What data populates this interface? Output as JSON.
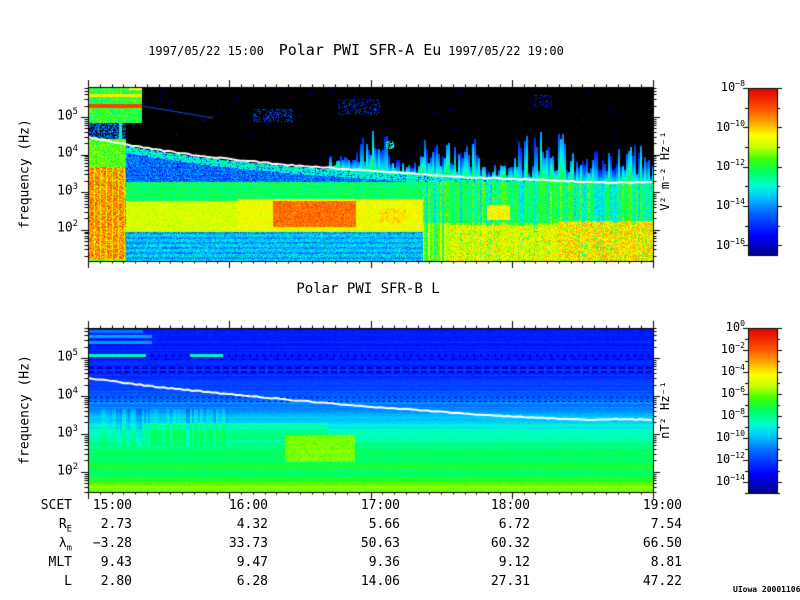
{
  "header": {
    "date_left": "1997/05/22 15:00",
    "title": "Polar PWI SFR-A Eu",
    "date_right": "1997/05/22 19:00"
  },
  "panel_b_title": "Polar PWI SFR-B L",
  "y_axis_label": "frequency (Hz)",
  "y_ticks_exp": [
    5,
    4,
    3,
    2
  ],
  "colorbars": [
    {
      "unit": "V² m⁻² Hz⁻¹",
      "labels_exp": [
        -8,
        -10,
        -12,
        -14,
        -16
      ],
      "range_exp": [
        -8,
        -16.5
      ]
    },
    {
      "unit": "nT² Hz⁻¹",
      "labels_exp": [
        0,
        -2,
        -4,
        -6,
        -8,
        -10,
        -12,
        -14
      ],
      "range_exp": [
        0,
        -15
      ]
    }
  ],
  "table": {
    "rows": [
      {
        "label": "SCET",
        "sub": "",
        "values": [
          "15:00",
          "16:00",
          "17:00",
          "18:00",
          "19:00"
        ]
      },
      {
        "label": "R",
        "sub": "E",
        "values": [
          "2.73",
          "4.32",
          "5.66",
          "6.72",
          "7.54"
        ]
      },
      {
        "label": "λ",
        "sub": "m",
        "values": [
          "−3.28",
          "33.73",
          "50.63",
          "60.32",
          "66.50"
        ]
      },
      {
        "label": "MLT",
        "sub": "",
        "values": [
          "9.43",
          "9.47",
          "9.36",
          "9.12",
          "8.81"
        ]
      },
      {
        "label": "L",
        "sub": "",
        "values": [
          "2.80",
          "6.28",
          "14.06",
          "27.31",
          "47.22"
        ]
      }
    ]
  },
  "credit": "UIowa 20001106",
  "colors": {
    "background": "#ffffff",
    "text": "#000000",
    "overlay_line": "#ffffff",
    "colormap_stops": [
      [
        0.0,
        "#00008a"
      ],
      [
        0.12,
        "#0000ff"
      ],
      [
        0.25,
        "#0064ff"
      ],
      [
        0.35,
        "#00c8ff"
      ],
      [
        0.42,
        "#00ffd0"
      ],
      [
        0.5,
        "#00ff60"
      ],
      [
        0.58,
        "#40ff00"
      ],
      [
        0.65,
        "#c8ff00"
      ],
      [
        0.72,
        "#ffff00"
      ],
      [
        0.8,
        "#ffa000"
      ],
      [
        0.88,
        "#ff5000"
      ],
      [
        1.0,
        "#e00000"
      ]
    ]
  },
  "chart_data": [
    {
      "type": "heatmap",
      "title": "Polar PWI SFR-A Eu",
      "xlabel": "SCET",
      "time_start": "1997/05/22 15:00",
      "time_end": "1997/05/22 19:00",
      "x_ticks": [
        "15:00",
        "16:00",
        "17:00",
        "18:00",
        "19:00"
      ],
      "ylabel": "frequency (Hz)",
      "yscale": "log",
      "y_ticks_hz": [
        100,
        1000,
        10000,
        100000
      ],
      "y_range_exp": [
        1.17,
        5.8
      ],
      "z_unit": "V² m⁻² Hz⁻¹",
      "z_tick_labels": [
        "10⁻⁸",
        "10⁻¹⁰",
        "10⁻¹²",
        "10⁻¹⁴",
        "10⁻¹⁶"
      ],
      "colormap": "rainbow blue=low red=high",
      "overlay_line": {
        "name": "electron-cyclotron-frequency-line",
        "color": "#ffffff",
        "points_tfrac_logf": [
          [
            0,
            4.47
          ],
          [
            0.1,
            4.18
          ],
          [
            0.2,
            3.96
          ],
          [
            0.35,
            3.73
          ],
          [
            0.5,
            3.57
          ],
          [
            0.65,
            3.41
          ],
          [
            0.8,
            3.33
          ],
          [
            0.92,
            3.25
          ],
          [
            1,
            3.27
          ]
        ]
      },
      "features": [
        "black (below noise) region above ~10 kHz after 15:25",
        "intense broadband burst column 15:00-15:25 full bandwidth with narrowband lines near 100-200 kHz",
        "red emission blob ~300-800 Hz between 16:15 and 16:50",
        "yellow-orange band 100 Hz-1 kHz across 15:25-17:20",
        "green/cyan vertical bursty striations after 17:00 up to the fce line",
        "orange-red patches below ~300 Hz after 17:40"
      ]
    },
    {
      "type": "heatmap",
      "title": "Polar PWI SFR-B L",
      "xlabel": "SCET",
      "time_start": "1997/05/22 15:00",
      "time_end": "1997/05/22 19:00",
      "x_ticks": [
        "15:00",
        "16:00",
        "17:00",
        "18:00",
        "19:00"
      ],
      "ylabel": "frequency (Hz)",
      "yscale": "log",
      "y_ticks_hz": [
        100,
        1000,
        10000,
        100000
      ],
      "y_range_exp": [
        1.47,
        5.79
      ],
      "z_unit": "nT² Hz⁻¹",
      "z_tick_labels": [
        "10⁰",
        "10⁻²",
        "10⁻⁴",
        "10⁻⁶",
        "10⁻⁸",
        "10⁻¹⁰",
        "10⁻¹²",
        "10⁻¹⁴"
      ],
      "colormap": "rainbow blue=low red=high",
      "overlay_line": {
        "name": "electron-cyclotron-frequency-line",
        "color": "#ffffff",
        "points_tfrac_logf": [
          [
            0,
            4.47
          ],
          [
            0.12,
            4.24
          ],
          [
            0.25,
            4.05
          ],
          [
            0.4,
            3.84
          ],
          [
            0.55,
            3.66
          ],
          [
            0.7,
            3.5
          ],
          [
            0.8,
            3.42
          ],
          [
            0.88,
            3.37
          ],
          [
            0.94,
            3.39
          ],
          [
            1,
            3.37
          ]
        ]
      },
      "features": [
        "smooth gradient dark blue (high f) to green/yellow (low f)",
        "cyan narrowband streaks near 100-300 kHz before 15:30",
        "dark dashed interference rows near 60-80 kHz",
        "yellow enhancement blob 150-500 Hz between 16:20 and 16:55",
        "yellow band below ~60 Hz across full interval"
      ]
    }
  ]
}
